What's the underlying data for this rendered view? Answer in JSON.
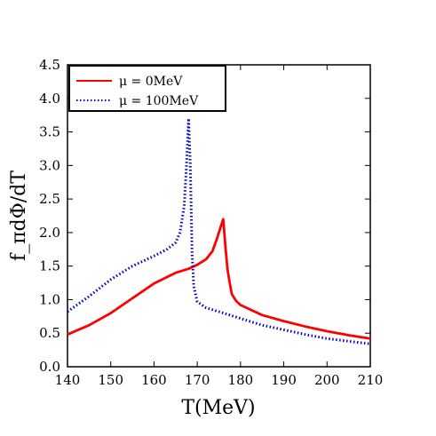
{
  "chart_data": {
    "type": "line",
    "xlabel": "T(MeV)",
    "ylabel": "f_πdΦ/dT",
    "xlim": [
      140,
      210
    ],
    "ylim": [
      0.0,
      4.5
    ],
    "xticks": [
      "140",
      "150",
      "160",
      "170",
      "180",
      "190",
      "200",
      "210"
    ],
    "yticks": [
      "0.0",
      "0.5",
      "1.0",
      "1.5",
      "2.0",
      "2.5",
      "3.0",
      "3.5",
      "4.0",
      "4.5"
    ],
    "legend_position": "top-left",
    "series": [
      {
        "name": "μ = 0MeV",
        "color": "#ff0000",
        "style": "solid",
        "points": [
          [
            140,
            0.48
          ],
          [
            145,
            0.62
          ],
          [
            150,
            0.8
          ],
          [
            155,
            1.02
          ],
          [
            160,
            1.24
          ],
          [
            165,
            1.4
          ],
          [
            168,
            1.46
          ],
          [
            170,
            1.52
          ],
          [
            172,
            1.6
          ],
          [
            173.5,
            1.72
          ],
          [
            174.5,
            1.9
          ],
          [
            175.5,
            2.1
          ],
          [
            176,
            2.2
          ],
          [
            176.5,
            1.8
          ],
          [
            177,
            1.45
          ],
          [
            177.5,
            1.25
          ],
          [
            178,
            1.08
          ],
          [
            179,
            0.98
          ],
          [
            180,
            0.92
          ],
          [
            185,
            0.77
          ],
          [
            190,
            0.68
          ],
          [
            195,
            0.6
          ],
          [
            200,
            0.53
          ],
          [
            205,
            0.47
          ],
          [
            210,
            0.42
          ]
        ]
      },
      {
        "name": "μ = 100MeV",
        "color": "#0000cc",
        "style": "dotted",
        "points": [
          [
            140,
            0.82
          ],
          [
            145,
            1.05
          ],
          [
            150,
            1.3
          ],
          [
            155,
            1.5
          ],
          [
            160,
            1.65
          ],
          [
            163,
            1.75
          ],
          [
            165,
            1.85
          ],
          [
            166,
            2.0
          ],
          [
            167,
            2.4
          ],
          [
            167.5,
            3.0
          ],
          [
            168,
            3.7
          ],
          [
            168.4,
            3.0
          ],
          [
            168.8,
            1.7
          ],
          [
            169.2,
            1.2
          ],
          [
            170,
            0.97
          ],
          [
            172,
            0.88
          ],
          [
            175,
            0.82
          ],
          [
            180,
            0.72
          ],
          [
            185,
            0.62
          ],
          [
            190,
            0.55
          ],
          [
            195,
            0.48
          ],
          [
            200,
            0.42
          ],
          [
            205,
            0.38
          ],
          [
            210,
            0.34
          ]
        ]
      }
    ]
  }
}
